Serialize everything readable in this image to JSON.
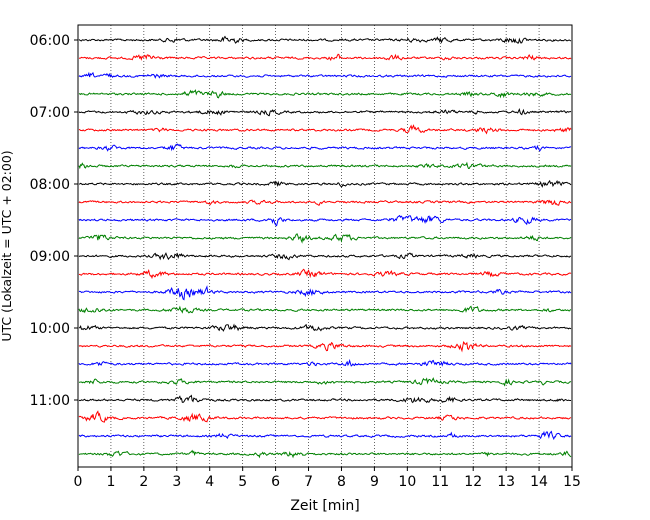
{
  "chart_data": {
    "type": "line",
    "title": "",
    "xlabel": "Zeit  [min]",
    "ylabel": "UTC (Lokalzeit = UTC + 02:00)",
    "xlim": [
      0,
      15
    ],
    "x_ticks": [
      "0",
      "1",
      "2",
      "3",
      "4",
      "5",
      "6",
      "7",
      "8",
      "9",
      "10",
      "11",
      "12",
      "13",
      "14",
      "15"
    ],
    "y_tick_labels": [
      "06:00",
      "07:00",
      "08:00",
      "09:00",
      "10:00",
      "11:00"
    ],
    "grid": "vertical-dotted",
    "trace_interval_minutes": 15,
    "start_time": "06:00",
    "trace_count": 24,
    "series_colors": [
      "#000000",
      "#ff0000",
      "#0000ff",
      "#008000"
    ]
  }
}
